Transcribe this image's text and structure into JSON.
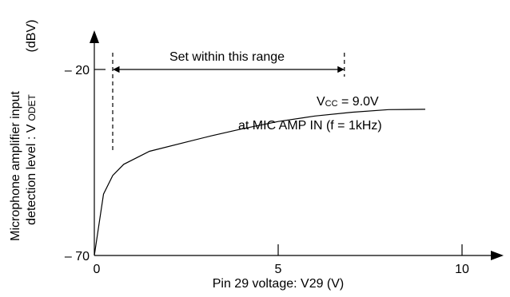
{
  "chart_data": {
    "type": "line",
    "xlabel": "Pin 29 voltage: V29 (V)",
    "ylabel_line1": "Microphone amplifier input",
    "ylabel_line2_prefix": "detection level : V",
    "ylabel_line2_sub": "ODET",
    "yunit": "(dBV)",
    "xlim": [
      0,
      10
    ],
    "ylim": [
      -70,
      -20
    ],
    "x_ticks": [
      {
        "value": 0,
        "label": "0"
      },
      {
        "value": 5,
        "label": "5"
      },
      {
        "value": 10,
        "label": "10"
      }
    ],
    "y_ticks": [
      {
        "value": -20,
        "label": "– 20"
      },
      {
        "value": -70,
        "label": "– 70"
      }
    ],
    "series": [
      {
        "x": [
          0,
          0.25,
          0.5,
          0.8,
          1.5,
          2.5,
          3.2,
          4.0,
          5.0,
          6.0,
          7.0,
          8.0,
          9.0
        ],
        "y": [
          -70,
          -53.5,
          -48.5,
          -45.5,
          -42,
          -39.5,
          -37.8,
          -36,
          -34,
          -32.5,
          -31.5,
          -30.8,
          -30.7
        ]
      }
    ],
    "range_markers": {
      "x_start": 0.5,
      "x_end": 6.8
    },
    "annotations": {
      "range_label": "Set within this range",
      "vcc_prefix": "V",
      "vcc_sub": "CC",
      "vcc_value": " = 9.0V",
      "condition": "at  MIC  AMP  IN (f = 1kHz)"
    }
  }
}
